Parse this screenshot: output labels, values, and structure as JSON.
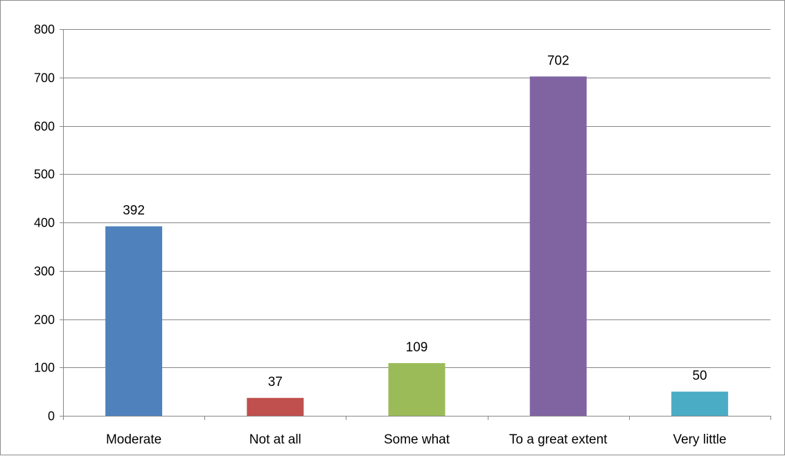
{
  "chart_data": {
    "type": "bar",
    "title": "",
    "xlabel": "",
    "ylabel": "",
    "categories": [
      "Moderate",
      "Not at all",
      "Some what",
      "To a great extent",
      "Very little"
    ],
    "values": [
      392,
      37,
      109,
      702,
      50
    ],
    "data_labels": [
      "392",
      "37",
      "109",
      "702",
      "50"
    ],
    "colors": [
      "#4f81bd",
      "#c0504d",
      "#9bbb59",
      "#8064a2",
      "#4bacc6"
    ],
    "ylim": [
      0,
      800
    ],
    "yticks": [
      0,
      100,
      200,
      300,
      400,
      500,
      600,
      700,
      800
    ],
    "ytick_labels": [
      "0",
      "100",
      "200",
      "300",
      "400",
      "500",
      "600",
      "700",
      "800"
    ],
    "grid": true,
    "gridline_color": "#868686",
    "legend": "none"
  }
}
